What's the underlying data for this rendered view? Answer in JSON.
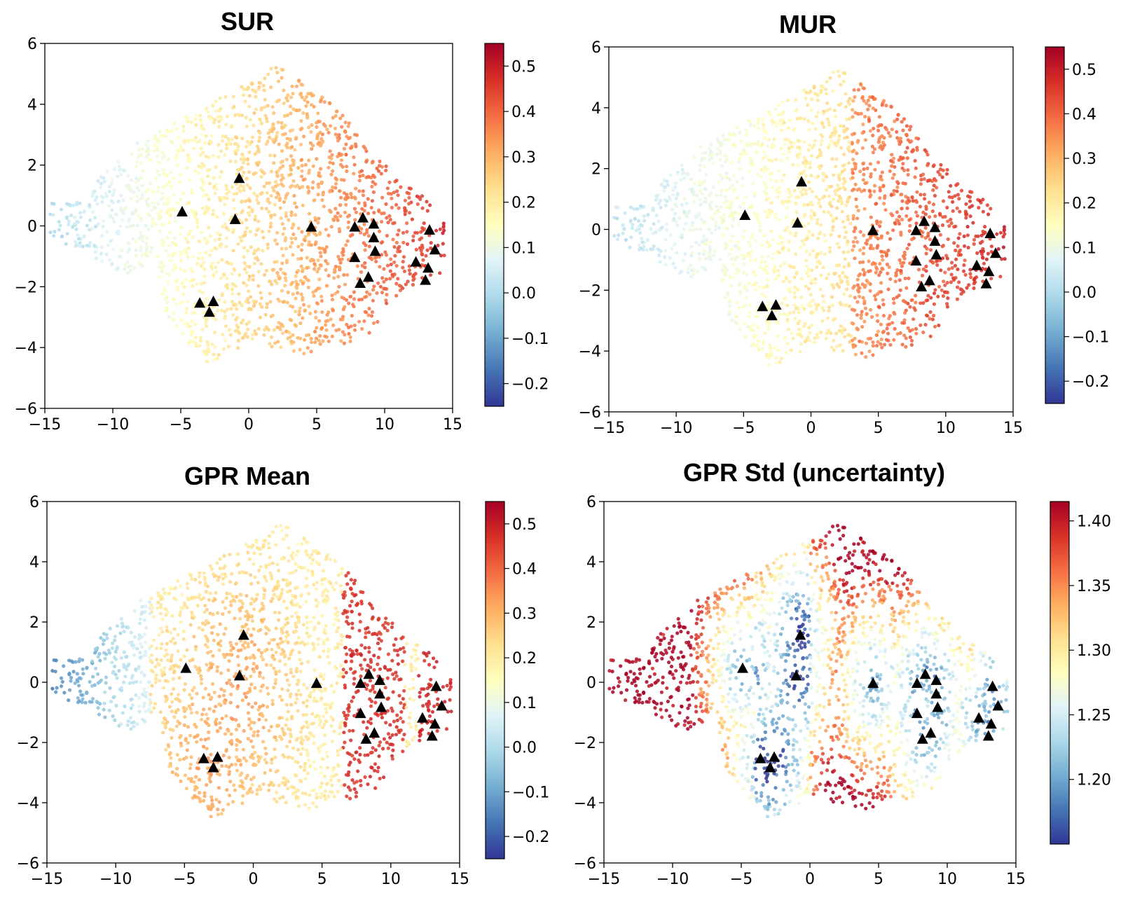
{
  "chart_data": [
    {
      "type": "scatter",
      "title": "SUR",
      "xlim": [
        -15,
        15
      ],
      "ylim": [
        -6,
        6
      ],
      "x_ticks": [
        "−15",
        "−10",
        "−5",
        "0",
        "5",
        "10",
        "15"
      ],
      "y_ticks": [
        "−6",
        "−4",
        "−2",
        "0",
        "2",
        "4",
        "6"
      ],
      "colorbar": {
        "min": -0.25,
        "max": 0.55,
        "cmap": "RdYlBu_r",
        "ticks": [
          "−0.2",
          "−0.1",
          "0.0",
          "0.1",
          "0.2",
          "0.3",
          "0.4",
          "0.5"
        ]
      },
      "value_trend": "left-low-right-high",
      "markers": [
        [
          -4.9,
          0.45
        ],
        [
          -0.7,
          1.55
        ],
        [
          -1.0,
          0.2
        ],
        [
          4.6,
          -0.05
        ],
        [
          7.8,
          -0.05
        ],
        [
          8.4,
          0.25
        ],
        [
          9.2,
          0.05
        ],
        [
          9.2,
          -0.4
        ],
        [
          9.3,
          -0.85
        ],
        [
          7.8,
          -1.05
        ],
        [
          8.8,
          -1.7
        ],
        [
          8.2,
          -1.9
        ],
        [
          -3.6,
          -2.55
        ],
        [
          -2.6,
          -2.5
        ],
        [
          -2.9,
          -2.85
        ],
        [
          13.3,
          -0.15
        ],
        [
          13.7,
          -0.8
        ],
        [
          12.3,
          -1.2
        ],
        [
          13.2,
          -1.4
        ],
        [
          13.0,
          -1.8
        ]
      ]
    },
    {
      "type": "scatter",
      "title": "MUR",
      "xlim": [
        -15,
        15
      ],
      "ylim": [
        -6,
        6
      ],
      "x_ticks": [
        "−15",
        "−10",
        "−5",
        "0",
        "5",
        "10",
        "15"
      ],
      "y_ticks": [
        "−6",
        "−4",
        "−2",
        "0",
        "2",
        "4",
        "6"
      ],
      "colorbar": {
        "min": -0.25,
        "max": 0.55,
        "cmap": "RdYlBu_r",
        "ticks": [
          "−0.2",
          "−0.1",
          "0.0",
          "0.1",
          "0.2",
          "0.3",
          "0.4",
          "0.5"
        ]
      },
      "value_trend": "left-low-right-high",
      "markers": [
        [
          -4.9,
          0.45
        ],
        [
          -0.7,
          1.55
        ],
        [
          -1.0,
          0.2
        ],
        [
          4.6,
          -0.05
        ],
        [
          7.8,
          -0.05
        ],
        [
          8.4,
          0.25
        ],
        [
          9.2,
          0.05
        ],
        [
          9.2,
          -0.4
        ],
        [
          9.3,
          -0.85
        ],
        [
          7.8,
          -1.05
        ],
        [
          8.8,
          -1.7
        ],
        [
          8.2,
          -1.9
        ],
        [
          -3.6,
          -2.55
        ],
        [
          -2.6,
          -2.5
        ],
        [
          -2.9,
          -2.85
        ],
        [
          13.3,
          -0.15
        ],
        [
          13.7,
          -0.8
        ],
        [
          12.3,
          -1.2
        ],
        [
          13.2,
          -1.4
        ],
        [
          13.0,
          -1.8
        ]
      ]
    },
    {
      "type": "scatter",
      "title": "GPR Mean",
      "xlim": [
        -15,
        15
      ],
      "ylim": [
        -6,
        6
      ],
      "x_ticks": [
        "−15",
        "−10",
        "−5",
        "0",
        "5",
        "10",
        "15"
      ],
      "y_ticks": [
        "−6",
        "−4",
        "−2",
        "0",
        "2",
        "4",
        "6"
      ],
      "colorbar": {
        "min": -0.25,
        "max": 0.55,
        "cmap": "RdYlBu_r",
        "ticks": [
          "−0.2",
          "−0.1",
          "0.0",
          "0.1",
          "0.2",
          "0.3",
          "0.4",
          "0.5"
        ]
      },
      "value_trend": "left-blue-cluster-rest-warm",
      "markers": [
        [
          -4.9,
          0.45
        ],
        [
          -0.7,
          1.55
        ],
        [
          -1.0,
          0.2
        ],
        [
          4.6,
          -0.05
        ],
        [
          7.8,
          -0.05
        ],
        [
          8.4,
          0.25
        ],
        [
          9.2,
          0.05
        ],
        [
          9.2,
          -0.4
        ],
        [
          9.3,
          -0.85
        ],
        [
          7.8,
          -1.05
        ],
        [
          8.8,
          -1.7
        ],
        [
          8.2,
          -1.9
        ],
        [
          -3.6,
          -2.55
        ],
        [
          -2.6,
          -2.5
        ],
        [
          -2.9,
          -2.85
        ],
        [
          13.3,
          -0.15
        ],
        [
          13.7,
          -0.8
        ],
        [
          12.3,
          -1.2
        ],
        [
          13.2,
          -1.4
        ],
        [
          13.0,
          -1.8
        ]
      ]
    },
    {
      "type": "scatter",
      "title": "GPR Std (uncertainty)",
      "xlim": [
        -15,
        15
      ],
      "ylim": [
        -6,
        6
      ],
      "x_ticks": [
        "−15",
        "−10",
        "−5",
        "0",
        "5",
        "10",
        "15"
      ],
      "y_ticks": [
        "−6",
        "−4",
        "−2",
        "0",
        "2",
        "4",
        "6"
      ],
      "colorbar": {
        "min": 1.15,
        "max": 1.415,
        "cmap": "RdYlBu_r",
        "ticks": [
          "1.20",
          "1.25",
          "1.30",
          "1.35",
          "1.40"
        ]
      },
      "value_trend": "low-near-markers-high-far",
      "markers": [
        [
          -4.9,
          0.45
        ],
        [
          -0.7,
          1.55
        ],
        [
          -1.0,
          0.2
        ],
        [
          4.6,
          -0.05
        ],
        [
          7.8,
          -0.05
        ],
        [
          8.4,
          0.25
        ],
        [
          9.2,
          0.05
        ],
        [
          9.2,
          -0.4
        ],
        [
          9.3,
          -0.85
        ],
        [
          7.8,
          -1.05
        ],
        [
          8.8,
          -1.7
        ],
        [
          8.2,
          -1.9
        ],
        [
          -3.6,
          -2.55
        ],
        [
          -2.6,
          -2.5
        ],
        [
          -2.9,
          -2.85
        ],
        [
          13.3,
          -0.15
        ],
        [
          13.7,
          -0.8
        ],
        [
          12.3,
          -1.2
        ],
        [
          13.2,
          -1.4
        ],
        [
          13.0,
          -1.8
        ]
      ]
    }
  ]
}
